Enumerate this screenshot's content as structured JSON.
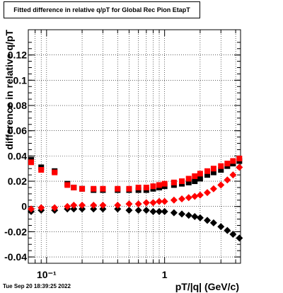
{
  "canvas": {
    "title": "Fitted difference in relative q/pT for Global Rec Pion EtapT",
    "timestamp": "Tue Sep 20 18:39:25 2022"
  },
  "chart_data": {
    "type": "scatter",
    "title": "Fitted difference in relative q/pT for Global Rec Pion EtapT",
    "xlabel": "pT/|q| (GeV/c)",
    "ylabel": "difference in relative q/pT",
    "xscale": "log",
    "xlim": [
      0.07,
      4.4
    ],
    "ylim": [
      -0.045,
      0.14
    ],
    "grid": true,
    "legend": "none",
    "x_tick_labels": [
      {
        "value": 0.1,
        "label": "10⁻¹"
      },
      {
        "value": 1,
        "label": "1"
      }
    ],
    "y_tick_labels": [
      "-0.04",
      "-0.02",
      "0",
      "0.02",
      "0.04",
      "0.06",
      "0.08",
      "0.1",
      "0.12"
    ],
    "y_tick_values": [
      -0.04,
      -0.02,
      0,
      0.02,
      0.04,
      0.06,
      0.08,
      0.1,
      0.12
    ],
    "series": [
      {
        "marker": "square",
        "color": "#000000",
        "points": [
          [
            0.074,
            0.037
          ],
          [
            0.09,
            0.031
          ],
          [
            0.117,
            0.028
          ],
          [
            0.15,
            0.018
          ],
          [
            0.17,
            0.015
          ],
          [
            0.2,
            0.014
          ],
          [
            0.25,
            0.013
          ],
          [
            0.3,
            0.013
          ],
          [
            0.4,
            0.013
          ],
          [
            0.5,
            0.013
          ],
          [
            0.6,
            0.013
          ],
          [
            0.7,
            0.013
          ],
          [
            0.8,
            0.014
          ],
          [
            0.9,
            0.015
          ],
          [
            1.0,
            0.016
          ],
          [
            1.2,
            0.017
          ],
          [
            1.4,
            0.018
          ],
          [
            1.6,
            0.019
          ],
          [
            1.8,
            0.02
          ],
          [
            2.0,
            0.022
          ],
          [
            2.3,
            0.025
          ],
          [
            2.6,
            0.027
          ],
          [
            3.0,
            0.029
          ],
          [
            3.4,
            0.032
          ],
          [
            3.8,
            0.034
          ],
          [
            4.3,
            0.036
          ]
        ]
      },
      {
        "marker": "square",
        "color": "#ff0000",
        "points": [
          [
            0.074,
            0.035
          ],
          [
            0.09,
            0.029
          ],
          [
            0.117,
            0.027
          ],
          [
            0.15,
            0.017
          ],
          [
            0.17,
            0.015
          ],
          [
            0.2,
            0.014
          ],
          [
            0.25,
            0.014
          ],
          [
            0.3,
            0.014
          ],
          [
            0.4,
            0.014
          ],
          [
            0.5,
            0.014
          ],
          [
            0.6,
            0.015
          ],
          [
            0.7,
            0.015
          ],
          [
            0.8,
            0.016
          ],
          [
            0.9,
            0.017
          ],
          [
            1.0,
            0.018
          ],
          [
            1.2,
            0.019
          ],
          [
            1.4,
            0.02
          ],
          [
            1.6,
            0.022
          ],
          [
            1.8,
            0.024
          ],
          [
            2.0,
            0.026
          ],
          [
            2.3,
            0.028
          ],
          [
            2.6,
            0.03
          ],
          [
            3.0,
            0.032
          ],
          [
            3.4,
            0.034
          ],
          [
            3.8,
            0.036
          ],
          [
            4.3,
            0.038
          ]
        ]
      },
      {
        "marker": "diamond",
        "color": "#000000",
        "points": [
          [
            0.074,
            -0.004
          ],
          [
            0.09,
            -0.003
          ],
          [
            0.117,
            -0.003
          ],
          [
            0.15,
            -0.002
          ],
          [
            0.17,
            -0.002
          ],
          [
            0.2,
            -0.002
          ],
          [
            0.25,
            -0.002
          ],
          [
            0.3,
            -0.002
          ],
          [
            0.4,
            -0.002
          ],
          [
            0.5,
            -0.003
          ],
          [
            0.6,
            -0.003
          ],
          [
            0.7,
            -0.003
          ],
          [
            0.8,
            -0.004
          ],
          [
            0.9,
            -0.004
          ],
          [
            1.0,
            -0.004
          ],
          [
            1.2,
            -0.005
          ],
          [
            1.4,
            -0.006
          ],
          [
            1.6,
            -0.007
          ],
          [
            1.8,
            -0.008
          ],
          [
            2.0,
            -0.009
          ],
          [
            2.3,
            -0.011
          ],
          [
            2.6,
            -0.013
          ],
          [
            3.0,
            -0.016
          ],
          [
            3.4,
            -0.019
          ],
          [
            3.8,
            -0.022
          ],
          [
            4.3,
            -0.025
          ]
        ]
      },
      {
        "marker": "diamond",
        "color": "#ff0000",
        "points": [
          [
            0.074,
            -0.002
          ],
          [
            0.09,
            -0.001
          ],
          [
            0.117,
            -0.001
          ],
          [
            0.15,
            0.0
          ],
          [
            0.17,
            0.001
          ],
          [
            0.2,
            0.001
          ],
          [
            0.25,
            0.001
          ],
          [
            0.3,
            0.001
          ],
          [
            0.4,
            0.001
          ],
          [
            0.5,
            0.002
          ],
          [
            0.6,
            0.002
          ],
          [
            0.7,
            0.003
          ],
          [
            0.8,
            0.003
          ],
          [
            0.9,
            0.004
          ],
          [
            1.0,
            0.004
          ],
          [
            1.2,
            0.005
          ],
          [
            1.4,
            0.006
          ],
          [
            1.6,
            0.007
          ],
          [
            1.8,
            0.008
          ],
          [
            2.0,
            0.009
          ],
          [
            2.3,
            0.011
          ],
          [
            2.6,
            0.014
          ],
          [
            3.0,
            0.017
          ],
          [
            3.4,
            0.021
          ],
          [
            3.8,
            0.025
          ],
          [
            4.3,
            0.031
          ]
        ]
      }
    ]
  }
}
